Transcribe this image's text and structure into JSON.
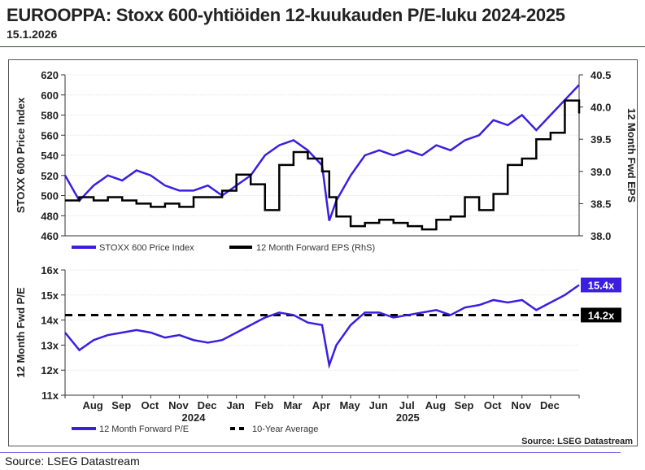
{
  "title": "EUROOPPA: Stoxx 600-yhtiöiden 12-kuukauden P/E-luku 2024-2025",
  "date": "15.1.2026",
  "footer": "Source: LSEG Datastream",
  "colors": {
    "price": "#3a1fe0",
    "eps": "#000000",
    "pe": "#3a1fe0",
    "avg": "#000000"
  },
  "chart_data": [
    {
      "type": "line",
      "ylabel": "STOXX 600 Price Index",
      "y2label": "12 Month Fwd EPS",
      "ylim": [
        460,
        620
      ],
      "y2lim": [
        38.0,
        40.5
      ],
      "yticks": [
        "460",
        "480",
        "500",
        "520",
        "540",
        "560",
        "580",
        "600",
        "620"
      ],
      "y2ticks": [
        "38.0",
        "38.5",
        "39.0",
        "39.5",
        "40.0",
        "40.5"
      ],
      "x_months_since_jul15_2024": [
        0,
        0.5,
        1,
        1.5,
        2,
        2.5,
        3,
        3.5,
        4,
        4.5,
        5,
        5.5,
        6,
        6.5,
        7,
        7.5,
        8,
        8.5,
        9,
        9.25,
        9.5,
        10,
        10.5,
        11,
        11.5,
        12,
        12.5,
        13,
        13.5,
        14,
        14.5,
        15,
        15.5,
        16,
        16.5,
        17,
        17.5,
        18
      ],
      "series": [
        {
          "name": "STOXX 600 Price Index",
          "axis": "left",
          "values": [
            520,
            495,
            510,
            520,
            515,
            525,
            520,
            510,
            505,
            505,
            510,
            500,
            510,
            520,
            540,
            550,
            555,
            545,
            530,
            475,
            495,
            520,
            540,
            545,
            540,
            545,
            540,
            550,
            545,
            555,
            560,
            575,
            570,
            580,
            565,
            580,
            595,
            610
          ]
        },
        {
          "name": "12 Month Forward EPS (RhS)",
          "axis": "right",
          "step": true,
          "values": [
            38.55,
            38.6,
            38.55,
            38.6,
            38.55,
            38.5,
            38.45,
            38.5,
            38.45,
            38.6,
            38.6,
            38.7,
            38.95,
            38.8,
            38.4,
            39.1,
            39.3,
            39.2,
            39.0,
            38.6,
            38.3,
            38.15,
            38.2,
            38.25,
            38.2,
            38.15,
            38.1,
            38.25,
            38.3,
            38.6,
            38.4,
            38.65,
            39.1,
            39.2,
            39.5,
            39.6,
            40.1,
            39.9
          ]
        }
      ]
    },
    {
      "type": "line",
      "ylabel": "12 Month Fwd P/E",
      "ylim": [
        11,
        16
      ],
      "yticks": [
        "11x",
        "12x",
        "13x",
        "14x",
        "15x",
        "16x"
      ],
      "x_months_since_jul15_2024": [
        0,
        0.5,
        1,
        1.5,
        2,
        2.5,
        3,
        3.5,
        4,
        4.5,
        5,
        5.5,
        6,
        6.5,
        7,
        7.5,
        8,
        8.5,
        9,
        9.25,
        9.5,
        10,
        10.5,
        11,
        11.5,
        12,
        12.5,
        13,
        13.5,
        14,
        14.5,
        15,
        15.5,
        16,
        16.5,
        17,
        17.5,
        18
      ],
      "xticks": [
        "Aug",
        "Sep",
        "Oct",
        "Nov",
        "Dec",
        "Jan",
        "Feb",
        "Mar",
        "Apr",
        "May",
        "Jun",
        "Jul",
        "Aug",
        "Sep",
        "Oct",
        "Nov",
        "Dec"
      ],
      "years": [
        "2024",
        "2025"
      ],
      "series": [
        {
          "name": "12 Month Forward P/E",
          "values": [
            13.5,
            12.8,
            13.2,
            13.4,
            13.5,
            13.6,
            13.5,
            13.3,
            13.4,
            13.2,
            13.1,
            13.2,
            13.5,
            13.8,
            14.1,
            14.3,
            14.2,
            13.9,
            13.8,
            12.2,
            13.0,
            13.8,
            14.3,
            14.3,
            14.1,
            14.2,
            14.3,
            14.4,
            14.2,
            14.5,
            14.6,
            14.8,
            14.7,
            14.8,
            14.4,
            14.7,
            15.0,
            15.4
          ]
        },
        {
          "name": "10-Year Average",
          "value": 14.2
        }
      ],
      "labels": {
        "last": "15.4x",
        "avg": "14.2x"
      },
      "source": "Source: LSEG Datastream"
    }
  ]
}
